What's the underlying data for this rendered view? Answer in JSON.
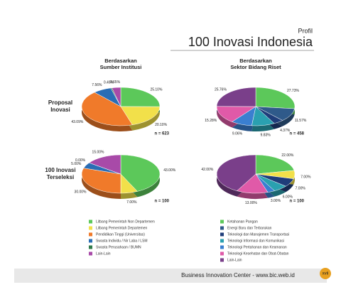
{
  "header": {
    "kicker": "Profil",
    "title": "100 Inovasi Indonesia"
  },
  "columns": [
    [
      "Berdasarkan",
      "Sumber Institusi"
    ],
    [
      "Berdasarkan",
      "Sektor Bidang Riset"
    ]
  ],
  "rows": [
    [
      "Proposal",
      "Inovasi"
    ],
    [
      "100 Inovasi",
      "Terseleksi"
    ]
  ],
  "chart_data": [
    {
      "type": "pie",
      "values": [
        25.1,
        20.1,
        43.09,
        7.56,
        0.49,
        3.65
      ],
      "value_labels": [
        "25.10%",
        "20.10%",
        "43.09%",
        "7.56%",
        "0.49%",
        "3.65%"
      ],
      "colors": [
        "#5cc85a",
        "#f2e04a",
        "#f07a2a",
        "#2a6db5",
        "#2f7a4a",
        "#a84aa8"
      ],
      "n_label": "n = 623"
    },
    {
      "type": "pie",
      "values": [
        27.73,
        11.57,
        4.37,
        9.83,
        9.06,
        15.28,
        25.76
      ],
      "value_labels": [
        "27.73%",
        "11.57%",
        "4.37%",
        "9.83%",
        "9.06%",
        "15.28%",
        "25.76%"
      ],
      "colors": [
        "#5cc85a",
        "#2f5a8a",
        "#1f3d7a",
        "#2aa0b0",
        "#3a7fd0",
        "#e05aa8",
        "#7a3f8a"
      ],
      "n_label": "n = 458"
    },
    {
      "type": "pie",
      "values": [
        43.0,
        7.0,
        30.0,
        5.0,
        0.0,
        15.0
      ],
      "value_labels": [
        "43.00%",
        "7.00%",
        "30.00%",
        "5.00%",
        "0.00%",
        "15.00%"
      ],
      "colors": [
        "#5cc85a",
        "#f2e04a",
        "#f07a2a",
        "#2a6db5",
        "#2f7a4a",
        "#a84aa8"
      ],
      "n_label": "n = 100"
    },
    {
      "type": "pie",
      "values": [
        22.0,
        7.0,
        7.0,
        6.0,
        3.0,
        13.0,
        42.0
      ],
      "value_labels": [
        "22.00%",
        "7.00%",
        "7.00%",
        "6.00%",
        "3.00%",
        "13.00%",
        "42.00%"
      ],
      "colors": [
        "#5cc85a",
        "#f2e04a",
        "#1f3d7a",
        "#2aa0b0",
        "#3a7fd0",
        "#e05aa8",
        "#7a3f8a"
      ],
      "n_label": "n = 100"
    }
  ],
  "legends": [
    [
      "Litbang Pemerintah Non Departemen",
      "Litbang Pemerintah Departemen",
      "Pendidikan Tinggi (Universitas)",
      "Swasta Individu / Nir Laba / LSM",
      "Swasta Perusahaan / BUMN",
      "Lain-Lain"
    ],
    [
      "Ketahanan Pangan",
      "Energi Baru dan Terbarukan",
      "Teknologi dan Manajemen Transportasi",
      "Teknologi Informasi dan Komunikasi",
      "Teknologi Pertahanan dan Keamanan",
      "Teknologi Kesehatan dan Obat-Obatan",
      "Lain-Lain"
    ]
  ],
  "footer": {
    "text": "Business Innovation Center - www.bic.web.id",
    "page": "xvii"
  }
}
